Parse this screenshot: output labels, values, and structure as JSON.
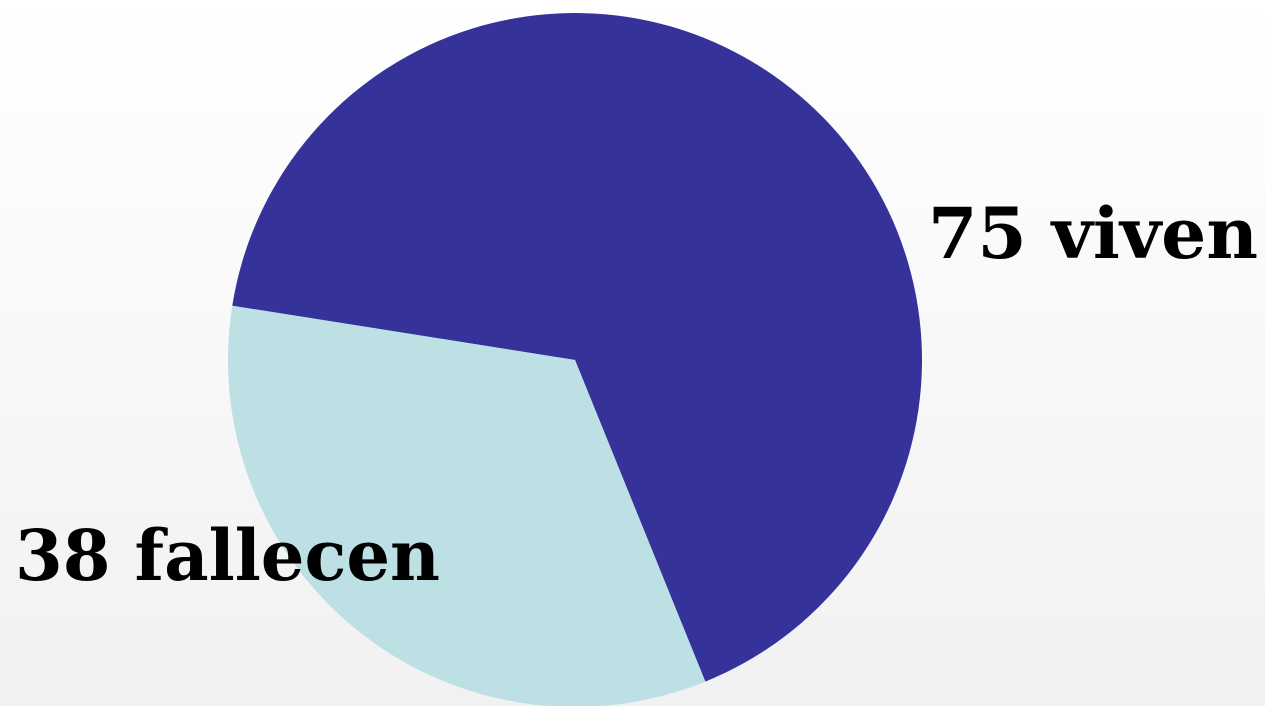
{
  "chart_data": {
    "type": "pie",
    "categories": [
      "viven",
      "fallecen"
    ],
    "values": [
      75,
      38
    ],
    "colors": [
      "#35339a",
      "#bce0e4"
    ]
  }
}
